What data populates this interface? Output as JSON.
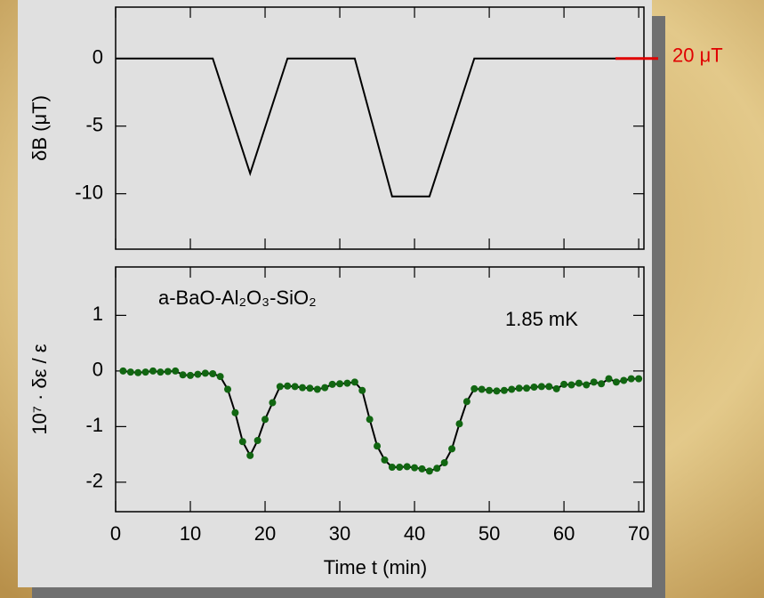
{
  "chart_data": [
    {
      "type": "line",
      "ylabel": "δB (μT)",
      "color": "#000000",
      "xlim": [
        0,
        70.7
      ],
      "xticks": [
        0,
        10,
        20,
        30,
        40,
        50,
        60,
        70
      ],
      "ylim": [
        -14.1,
        3.8
      ],
      "yticks": [
        0,
        -5,
        -10
      ],
      "x": [
        0,
        13,
        18,
        23,
        30,
        32,
        37,
        42,
        48,
        67
      ],
      "values": [
        0,
        0,
        -8.5,
        0,
        0,
        0,
        -10.2,
        -10.2,
        0,
        0
      ],
      "scale_bar": {
        "label": "20 μT",
        "color": "#e00000"
      }
    },
    {
      "type": "line-markers",
      "ylabel": "10⁷ · δε / ε",
      "xlabel": "Time t (min)",
      "color": "#116611",
      "annotations": [
        "a-BaO-Al₂O₃-SiO₂",
        "1.85 mK"
      ],
      "xlim": [
        0,
        70.7
      ],
      "xticks": [
        0,
        10,
        20,
        30,
        40,
        50,
        60,
        70
      ],
      "ylim": [
        -2.53,
        1.87
      ],
      "yticks": [
        1,
        0,
        -1,
        -2
      ],
      "x": [
        1,
        2,
        3,
        4,
        5,
        6,
        7,
        8,
        9,
        10,
        11,
        12,
        13,
        14,
        15,
        16,
        17,
        18,
        19,
        20,
        21,
        22,
        23,
        24,
        25,
        26,
        27,
        28,
        29,
        30,
        31,
        32,
        33,
        34,
        35,
        36,
        37,
        38,
        39,
        40,
        41,
        42,
        43,
        44,
        45,
        46,
        47,
        48,
        49,
        50,
        51,
        52,
        53,
        54,
        55,
        56,
        57,
        58,
        59,
        60,
        61,
        62,
        63,
        64,
        65,
        66,
        67,
        68,
        69,
        70
      ],
      "values": [
        0,
        -0.02,
        -0.03,
        -0.02,
        0,
        -0.02,
        -0.01,
        0,
        -0.07,
        -0.08,
        -0.06,
        -0.04,
        -0.05,
        -0.1,
        -0.33,
        -0.75,
        -1.27,
        -1.52,
        -1.25,
        -0.87,
        -0.57,
        -0.28,
        -0.27,
        -0.28,
        -0.3,
        -0.31,
        -0.33,
        -0.3,
        -0.24,
        -0.23,
        -0.22,
        -0.2,
        -0.35,
        -0.87,
        -1.35,
        -1.6,
        -1.73,
        -1.73,
        -1.72,
        -1.74,
        -1.76,
        -1.8,
        -1.75,
        -1.65,
        -1.4,
        -0.95,
        -0.55,
        -0.32,
        -0.33,
        -0.35,
        -0.36,
        -0.35,
        -0.33,
        -0.31,
        -0.31,
        -0.29,
        -0.28,
        -0.28,
        -0.32,
        -0.24,
        -0.25,
        -0.22,
        -0.25,
        -0.2,
        -0.23,
        -0.14,
        -0.2,
        -0.17,
        -0.14,
        -0.14
      ]
    }
  ]
}
